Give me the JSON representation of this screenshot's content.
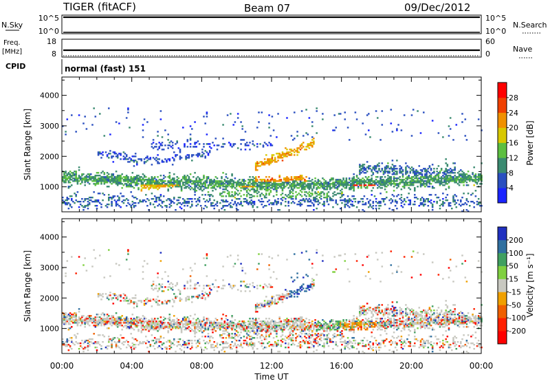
{
  "header": {
    "radar": "TIGER (fitACF)",
    "beam": "Beam 07",
    "date": "09/Dec/2012"
  },
  "panels": {
    "nsky": {
      "label_left": "N.Sky",
      "label_right": "N.Search",
      "left_ticks": [
        "10^5",
        "10^0"
      ],
      "right_ticks": [
        "10^5",
        "10^0"
      ]
    },
    "freq": {
      "label_left_1": "Freq.",
      "label_left_2": "[MHz]",
      "label_right": "Nave",
      "left_ticks": [
        "18",
        "8"
      ],
      "right_ticks": [
        "60",
        "0"
      ]
    },
    "cpid": {
      "label": "CPID",
      "text": "normal (fast) 151"
    }
  },
  "chart_data": [
    {
      "type": "heatmap",
      "name": "power",
      "ylabel": "Slant Range [km]",
      "xlabel": "Time UT",
      "x_ticks": [
        "00:00",
        "04:00",
        "08:00",
        "12:00",
        "16:00",
        "20:00",
        "00:00"
      ],
      "y_ticks": [
        1000,
        2000,
        3000,
        4000
      ],
      "ylim": [
        180,
        4600
      ],
      "xlim_hours": [
        0,
        24
      ],
      "colorbar": {
        "label": "Power [dB]",
        "ticks": [
          4,
          8,
          12,
          16,
          20,
          24,
          28
        ],
        "range": [
          0,
          32
        ],
        "colors": [
          "#1a24ff",
          "#2a4fc0",
          "#3a8a70",
          "#5cbf40",
          "#d8c800",
          "#f09000",
          "#f04000",
          "#ff0000"
        ]
      }
    },
    {
      "type": "heatmap",
      "name": "velocity",
      "ylabel": "Slant Range [km]",
      "xlabel": "Time UT",
      "x_ticks": [
        "00:00",
        "04:00",
        "08:00",
        "12:00",
        "16:00",
        "20:00",
        "00:00"
      ],
      "y_ticks": [
        1000,
        2000,
        3000,
        4000
      ],
      "ylim": [
        180,
        4600
      ],
      "xlim_hours": [
        0,
        24
      ],
      "colorbar": {
        "label": "Velocity [m s⁻¹]",
        "ticks": [
          "200",
          "100",
          "50",
          "15",
          "-15",
          "-50",
          "-100",
          "-200"
        ],
        "colors": [
          "#2030c0",
          "#3070a0",
          "#40a060",
          "#80d040",
          "#c8c8c0",
          "#f0a000",
          "#f06000",
          "#ff2000",
          "#ff0000"
        ]
      }
    }
  ]
}
